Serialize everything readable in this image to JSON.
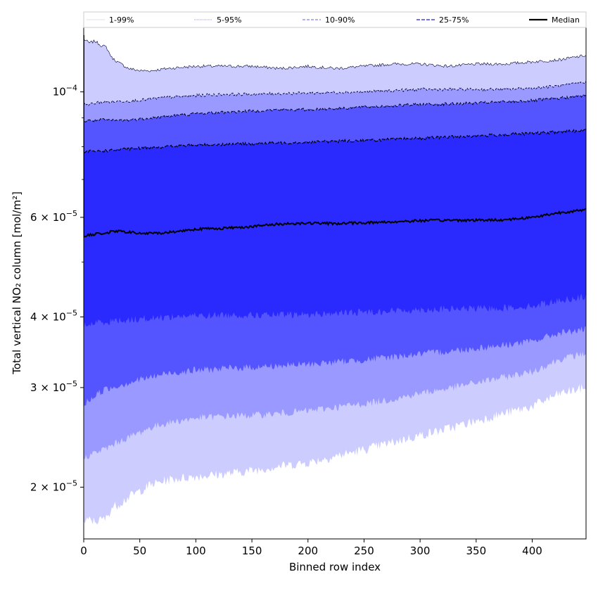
{
  "chart_data": {
    "type": "area",
    "xlabel": "Binned row index",
    "ylabel": "Total vertical NO₂ column [mol/m²]",
    "xlim": [
      0,
      448
    ],
    "ylim": [
      1.62e-05,
      0.00013
    ],
    "yscale": "log",
    "x_ticks": [
      0,
      50,
      100,
      150,
      200,
      250,
      300,
      350,
      400
    ],
    "y_ticks": [
      {
        "value": 2e-05,
        "mantissa": "2",
        "exp": "−5"
      },
      {
        "value": 3e-05,
        "mantissa": "3",
        "exp": "−5"
      },
      {
        "value": 4e-05,
        "mantissa": "4",
        "exp": "−5"
      },
      {
        "value": 6e-05,
        "mantissa": "6",
        "exp": "−5"
      },
      {
        "value": 0.0001,
        "mantissa": "",
        "exp": "−4"
      }
    ],
    "legend": {
      "placement": "top",
      "entries": [
        {
          "label": "1-99%",
          "color": "#ccccff",
          "style": "solid"
        },
        {
          "label": "5-95%",
          "color": "#9999cc",
          "style": "dotted"
        },
        {
          "label": "10-90%",
          "color": "#8080ee",
          "style": "dashed"
        },
        {
          "label": "25-75%",
          "color": "#4444dd",
          "style": "dashed"
        },
        {
          "label": "Median",
          "color": "#000000",
          "style": "solid"
        }
      ]
    },
    "x": [
      0,
      5,
      10,
      15,
      20,
      25,
      30,
      40,
      50,
      60,
      75,
      100,
      125,
      150,
      175,
      200,
      225,
      250,
      275,
      300,
      325,
      350,
      375,
      400,
      425,
      448
    ],
    "series": [
      {
        "name": "1-99%",
        "color": "#ccccff",
        "lower": [
          1.73e-05,
          1.75e-05,
          1.74e-05,
          1.75e-05,
          1.76e-05,
          1.84e-05,
          1.86e-05,
          1.92e-05,
          1.97e-05,
          2.02e-05,
          2.06e-05,
          2.09e-05,
          2.11e-05,
          2.14e-05,
          2.18e-05,
          2.21e-05,
          2.27e-05,
          2.33e-05,
          2.4e-05,
          2.47e-05,
          2.54e-05,
          2.62e-05,
          2.7e-05,
          2.78e-05,
          2.93e-05,
          3e-05
        ],
        "upper": [
          0.000124,
          0.000122,
          0.000123,
          0.000121,
          0.00012,
          0.000115,
          0.000113,
          0.00011,
          0.000109,
          0.000109,
          0.00011,
          0.000111,
          0.000111,
          0.000111,
          0.00011,
          0.000111,
          0.00011,
          0.000111,
          0.000112,
          0.000112,
          0.000111,
          0.000112,
          0.000112,
          0.000113,
          0.000114,
          0.000116
        ]
      },
      {
        "name": "5-95%",
        "color": "#9999ff",
        "lower": [
          2.25e-05,
          2.28e-05,
          2.3e-05,
          2.32e-05,
          2.34e-05,
          2.37e-05,
          2.4e-05,
          2.45e-05,
          2.5e-05,
          2.55e-05,
          2.6e-05,
          2.65e-05,
          2.67e-05,
          2.68e-05,
          2.7e-05,
          2.73e-05,
          2.77e-05,
          2.81e-05,
          2.86e-05,
          2.93e-05,
          2.99e-05,
          3.06e-05,
          3.13e-05,
          3.2e-05,
          3.37e-05,
          3.45e-05
        ],
        "upper": [
          9.5e-05,
          9.5e-05,
          9.55e-05,
          9.6e-05,
          9.6e-05,
          9.6e-05,
          9.62e-05,
          9.64e-05,
          9.66e-05,
          9.72e-05,
          9.78e-05,
          9.85e-05,
          9.9e-05,
          9.9e-05,
          9.93e-05,
          9.95e-05,
          9.98e-05,
          0.0001,
          0.0001005,
          0.000101,
          0.000101,
          0.000101,
          0.000101,
          0.0001015,
          0.0001025,
          0.000104
        ]
      },
      {
        "name": "10-90%",
        "color": "#5555ff",
        "lower": [
          2.8e-05,
          2.85e-05,
          2.9e-05,
          2.95e-05,
          2.98e-05,
          3e-05,
          3.02e-05,
          3.06e-05,
          3.1e-05,
          3.13e-05,
          3.18e-05,
          3.22e-05,
          3.24e-05,
          3.26e-05,
          3.28e-05,
          3.3e-05,
          3.33e-05,
          3.36e-05,
          3.4e-05,
          3.44e-05,
          3.48e-05,
          3.52e-05,
          3.57e-05,
          3.62e-05,
          3.75e-05,
          3.8e-05
        ],
        "upper": [
          8.85e-05,
          8.9e-05,
          8.9e-05,
          8.92e-05,
          8.92e-05,
          8.9e-05,
          8.9e-05,
          8.92e-05,
          8.95e-05,
          9e-05,
          9.05e-05,
          9.15e-05,
          9.2e-05,
          9.25e-05,
          9.3e-05,
          9.3e-05,
          9.35e-05,
          9.4e-05,
          9.45e-05,
          9.5e-05,
          9.52e-05,
          9.55e-05,
          9.6e-05,
          9.65e-05,
          9.75e-05,
          9.85e-05
        ]
      },
      {
        "name": "25-75%",
        "color": "#2a2aff",
        "lower": [
          3.85e-05,
          3.88e-05,
          3.9e-05,
          3.92e-05,
          3.92e-05,
          3.93e-05,
          3.94e-05,
          3.95e-05,
          3.97e-05,
          3.98e-05,
          4e-05,
          4.02e-05,
          4.03e-05,
          4.03e-05,
          4.03e-05,
          4.04e-05,
          4.06e-05,
          4.08e-05,
          4.1e-05,
          4.12e-05,
          4.13e-05,
          4.14e-05,
          4.15e-05,
          4.18e-05,
          4.28e-05,
          4.35e-05
        ],
        "upper": [
          7.8e-05,
          7.85e-05,
          7.85e-05,
          7.86e-05,
          7.87e-05,
          7.88e-05,
          7.9e-05,
          7.92e-05,
          7.95e-05,
          7.98e-05,
          8e-05,
          8.05e-05,
          8.08e-05,
          8.1e-05,
          8.12e-05,
          8.15e-05,
          8.18e-05,
          8.2e-05,
          8.24e-05,
          8.28e-05,
          8.32e-05,
          8.36e-05,
          8.4e-05,
          8.44e-05,
          8.5e-05,
          8.55e-05
        ]
      }
    ],
    "median": {
      "name": "Median",
      "color": "#000000",
      "values": [
        5.55e-05,
        5.58e-05,
        5.6e-05,
        5.62e-05,
        5.63e-05,
        5.66e-05,
        5.67e-05,
        5.65e-05,
        5.62e-05,
        5.62e-05,
        5.64e-05,
        5.72e-05,
        5.74e-05,
        5.78e-05,
        5.84e-05,
        5.86e-05,
        5.85e-05,
        5.87e-05,
        5.89e-05,
        5.92e-05,
        5.93e-05,
        5.93e-05,
        5.94e-05,
        6e-05,
        6.12e-05,
        6.18e-05
      ]
    }
  }
}
